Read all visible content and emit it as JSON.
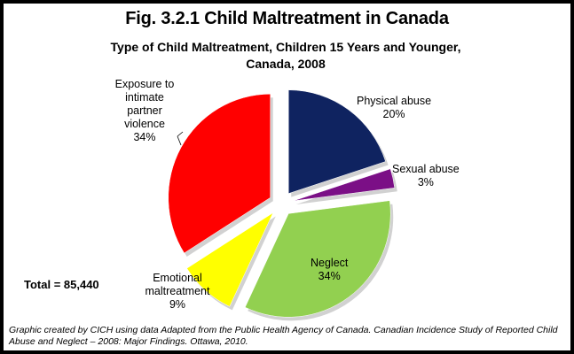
{
  "figure": {
    "title": "Fig. 3.2.1 Child Maltreatment in Canada",
    "total": "Total = 85,440",
    "source": "Graphic created by CICH using data Adapted from the Public Health Agency of Canada. Canadian Incidence Study of Reported Child Abuse and Neglect – 2008: Major Findings. Ottawa, 2010."
  },
  "chart_data": {
    "type": "pie",
    "title": "Type of Child Maltreatment, Children 15 Years and Younger, Canada, 2008",
    "exploded": true,
    "slices": [
      {
        "label": "Physical abuse",
        "value": 20,
        "value_label": "20%",
        "color": "#0f2360"
      },
      {
        "label": "Sexual abuse",
        "value": 3,
        "value_label": "3%",
        "color": "#7b0f86"
      },
      {
        "label": "Neglect",
        "value": 34,
        "value_label": "34%",
        "color": "#92d050"
      },
      {
        "label": "Emotional maltreatment",
        "value": 9,
        "value_label": "9%",
        "color": "#ffff00"
      },
      {
        "label": "Exposure to intimate partner violence",
        "value": 34,
        "value_label": "34%",
        "color": "#ff0000"
      }
    ]
  }
}
